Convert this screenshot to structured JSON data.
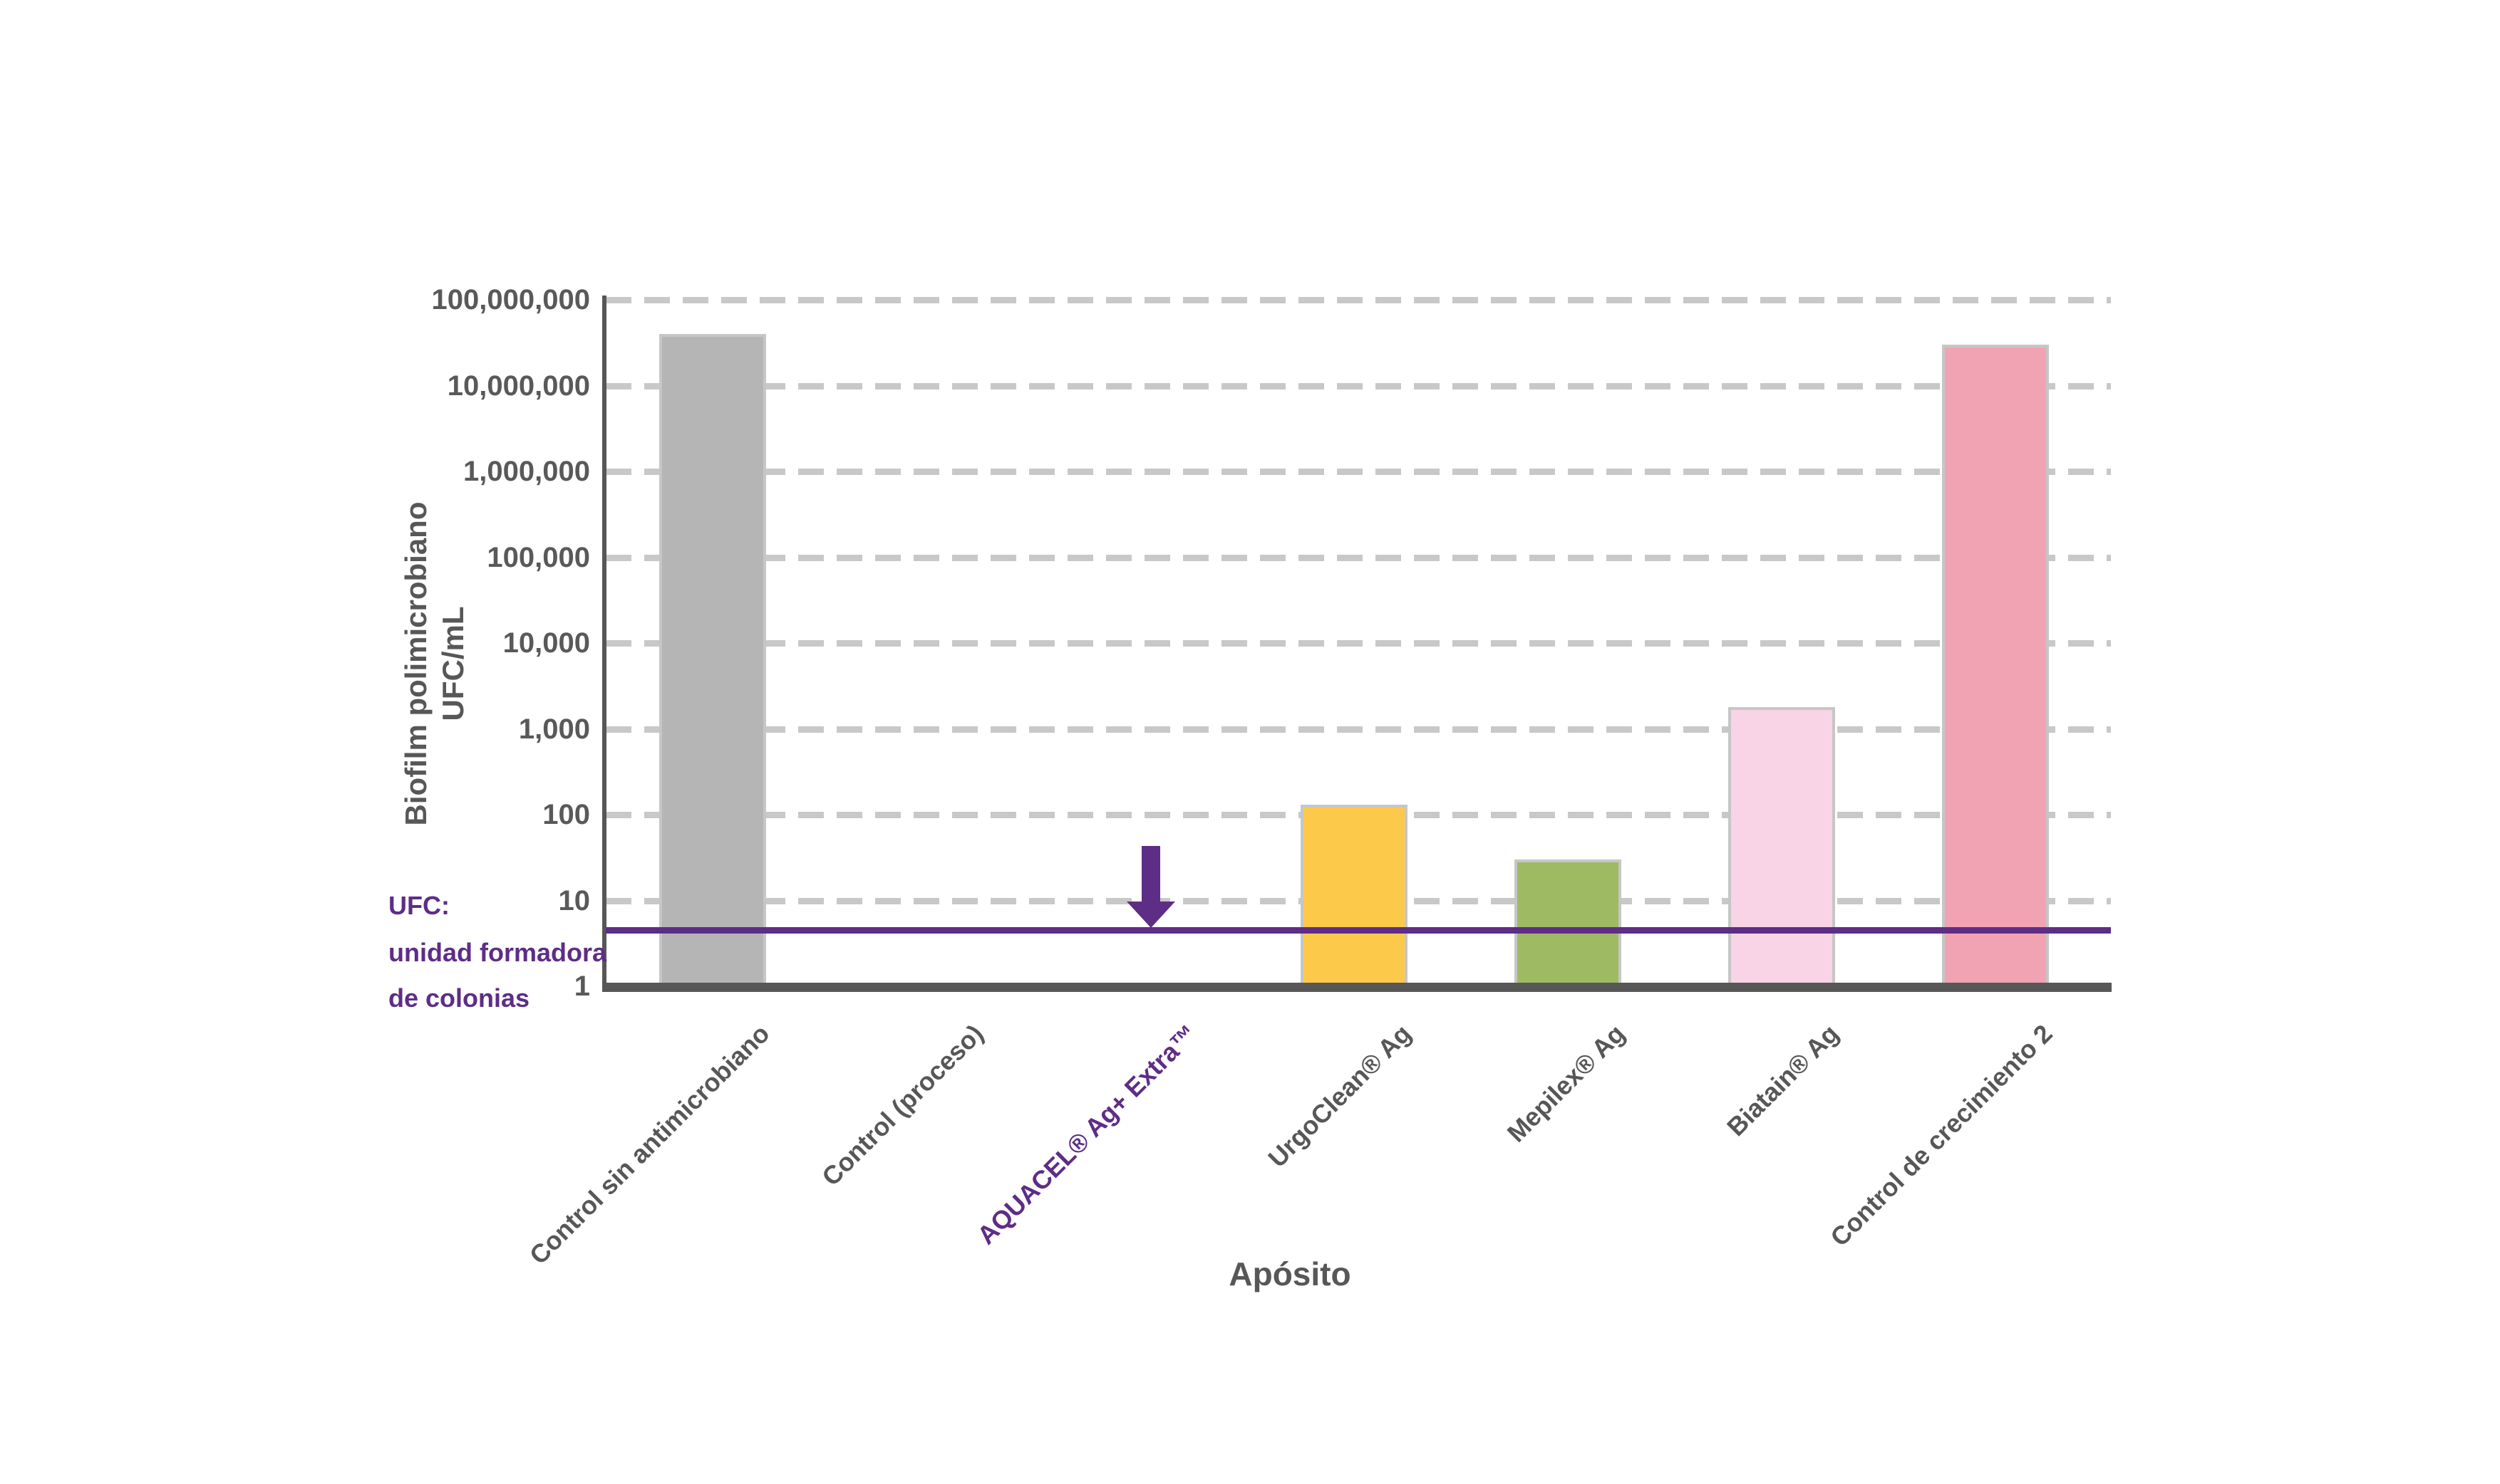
{
  "chart_data": {
    "type": "bar",
    "title": "",
    "xlabel": "Apósito",
    "ylabel_lines": [
      "Biofilm polimicrobiano",
      "UFC/mL"
    ],
    "y_scale": "log10",
    "ylim": [
      1,
      100000000
    ],
    "y_ticks": [
      "1",
      "10",
      "100",
      "1,000",
      "10,000",
      "100,000",
      "1,000,000",
      "10,000,000",
      "100,000,000"
    ],
    "grid": "horizontal dashed, one line per decade",
    "legend_position": "none",
    "bars": [
      {
        "category": "Control sin antimicrobiano",
        "value": 40000000,
        "color": "#b5b5b5",
        "label_color": "#575757",
        "below_detection": false
      },
      {
        "category": "Control (proceso)",
        "value": null,
        "color": null,
        "label_color": "#575757",
        "below_detection": false
      },
      {
        "category": "AQUACEL® Ag+ Extra™",
        "value": null,
        "color": null,
        "label_color": "#5e2d86",
        "below_detection": true
      },
      {
        "category": "UrgoClean® Ag",
        "value": 130,
        "color": "#fcc94b",
        "label_color": "#575757",
        "below_detection": false
      },
      {
        "category": "Mepilex® Ag",
        "value": 30,
        "color": "#9eba62",
        "label_color": "#575757",
        "below_detection": false
      },
      {
        "category": "Biatain® Ag",
        "value": 1800,
        "color": "#f8d4e6",
        "label_color": "#575757",
        "below_detection": false
      },
      {
        "category": "Control de crecimiento 2",
        "value": 30000000,
        "color": "#f2a3b3",
        "label_color": "#575757",
        "below_detection": false
      }
    ],
    "detection_line": {
      "value": 4.5,
      "meaning": "límite de detección (UFC)",
      "color": "#5e2d86"
    },
    "annotation_arrow": {
      "meaning": "reducción por debajo del límite de detección",
      "at_category": "AQUACEL® Ag+ Extra™",
      "color": "#5e2d86"
    },
    "footnote_lines": [
      "UFC:",
      "unidad formadora",
      "de colonias"
    ],
    "footnote_color": "#5e2d86"
  }
}
